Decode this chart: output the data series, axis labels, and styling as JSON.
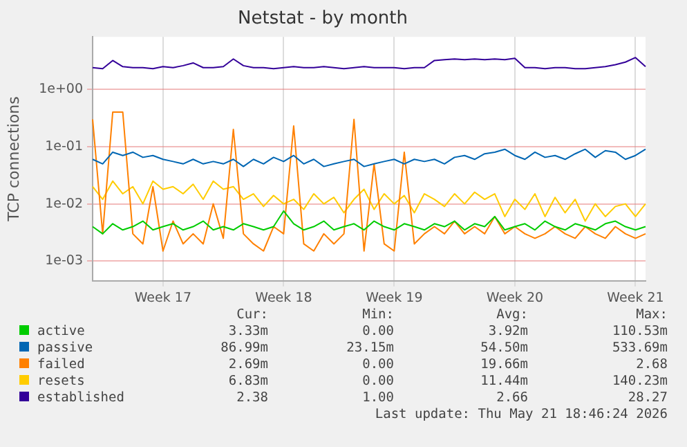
{
  "chart_data": {
    "type": "line",
    "title": "Netstat - by month",
    "ylabel": "TCP connections",
    "log": "y",
    "grid": true,
    "legend": "bottom",
    "ylim": [
      0.00045,
      8.3
    ],
    "categories": [
      null,
      null,
      null,
      null,
      null,
      null,
      null,
      "Week 17",
      null,
      null,
      null,
      null,
      null,
      null,
      null,
      null,
      null,
      null,
      null,
      "Week 18",
      null,
      null,
      null,
      null,
      null,
      null,
      null,
      null,
      null,
      null,
      "Week 19",
      null,
      null,
      null,
      null,
      null,
      null,
      null,
      null,
      null,
      null,
      null,
      "Week 20",
      null,
      null,
      null,
      null,
      null,
      null,
      null,
      null,
      null,
      null,
      null,
      "Week 21",
      null
    ],
    "yticks": [
      {
        "value": 0.001,
        "label": "1e-03"
      },
      {
        "value": 0.01,
        "label": "1e-02"
      },
      {
        "value": 0.1,
        "label": "1e-01"
      },
      {
        "value": 1,
        "label": "1e+00"
      }
    ],
    "series": [
      {
        "name": "active",
        "color": "#00cc00",
        "values": [
          0.004,
          0.003,
          0.0045,
          0.0035,
          0.004,
          0.005,
          0.0035,
          0.004,
          0.0045,
          0.0035,
          0.004,
          0.005,
          0.0035,
          0.004,
          0.0035,
          0.0045,
          0.004,
          0.0035,
          0.004,
          0.0075,
          0.0045,
          0.0035,
          0.004,
          0.005,
          0.0035,
          0.004,
          0.0045,
          0.0035,
          0.005,
          0.004,
          0.0035,
          0.0045,
          0.004,
          0.0035,
          0.0045,
          0.004,
          0.005,
          0.0035,
          0.0045,
          0.004,
          0.006,
          0.0035,
          0.004,
          0.0045,
          0.0035,
          0.005,
          0.004,
          0.0035,
          0.0045,
          0.004,
          0.0035,
          0.0045,
          0.005,
          0.004,
          0.0035,
          0.004
        ]
      },
      {
        "name": "passive",
        "color": "#0066b3",
        "values": [
          0.06,
          0.05,
          0.08,
          0.07,
          0.08,
          0.065,
          0.07,
          0.06,
          0.055,
          0.05,
          0.06,
          0.05,
          0.055,
          0.05,
          0.06,
          0.045,
          0.06,
          0.05,
          0.065,
          0.055,
          0.07,
          0.05,
          0.06,
          0.045,
          0.05,
          0.055,
          0.06,
          0.045,
          0.05,
          0.055,
          0.06,
          0.05,
          0.06,
          0.055,
          0.06,
          0.05,
          0.065,
          0.07,
          0.06,
          0.075,
          0.08,
          0.09,
          0.07,
          0.06,
          0.08,
          0.065,
          0.07,
          0.06,
          0.075,
          0.09,
          0.065,
          0.085,
          0.08,
          0.06,
          0.07,
          0.09
        ]
      },
      {
        "name": "failed",
        "color": "#ff8000",
        "values": [
          0.3,
          0.003,
          0.4,
          0.4,
          0.003,
          0.002,
          0.02,
          0.0015,
          0.005,
          0.002,
          0.003,
          0.002,
          0.01,
          0.0025,
          0.2,
          0.003,
          0.002,
          0.0015,
          0.004,
          0.003,
          0.23,
          0.002,
          0.0015,
          0.003,
          0.002,
          0.003,
          0.3,
          0.0015,
          0.05,
          0.002,
          0.0015,
          0.08,
          0.002,
          0.003,
          0.004,
          0.003,
          0.005,
          0.003,
          0.004,
          0.003,
          0.006,
          0.003,
          0.004,
          0.003,
          0.0025,
          0.003,
          0.004,
          0.003,
          0.0025,
          0.004,
          0.003,
          0.0025,
          0.004,
          0.003,
          0.0025,
          0.003
        ]
      },
      {
        "name": "resets",
        "color": "#ffcc00",
        "values": [
          0.02,
          0.012,
          0.025,
          0.015,
          0.02,
          0.01,
          0.025,
          0.018,
          0.02,
          0.015,
          0.022,
          0.012,
          0.025,
          0.018,
          0.02,
          0.012,
          0.015,
          0.009,
          0.014,
          0.01,
          0.012,
          0.008,
          0.015,
          0.01,
          0.013,
          0.007,
          0.012,
          0.018,
          0.008,
          0.015,
          0.01,
          0.014,
          0.007,
          0.015,
          0.012,
          0.009,
          0.015,
          0.01,
          0.016,
          0.012,
          0.015,
          0.006,
          0.012,
          0.008,
          0.015,
          0.006,
          0.013,
          0.007,
          0.012,
          0.005,
          0.01,
          0.006,
          0.009,
          0.01,
          0.006,
          0.01
        ]
      },
      {
        "name": "established",
        "color": "#330099",
        "values": [
          2.4,
          2.3,
          3.2,
          2.5,
          2.4,
          2.4,
          2.3,
          2.5,
          2.4,
          2.6,
          2.9,
          2.4,
          2.4,
          2.5,
          3.4,
          2.6,
          2.4,
          2.4,
          2.3,
          2.4,
          2.5,
          2.4,
          2.4,
          2.5,
          2.4,
          2.3,
          2.4,
          2.5,
          2.4,
          2.4,
          2.4,
          2.3,
          2.4,
          2.4,
          3.2,
          3.3,
          3.4,
          3.3,
          3.4,
          3.3,
          3.4,
          3.3,
          3.5,
          2.4,
          2.4,
          2.3,
          2.4,
          2.4,
          2.3,
          2.3,
          2.4,
          2.5,
          2.7,
          3.0,
          3.6,
          2.5
        ]
      }
    ],
    "annotations": [
      "Cur:",
      "Min:",
      "Avg:",
      "Max:",
      "3.33m",
      "0.00",
      "3.92m",
      "110.53m",
      "86.99m",
      "23.15m",
      "54.50m",
      "533.69m",
      "2.69m",
      "0.00",
      "19.66m",
      "2.68",
      "6.83m",
      "0.00",
      "11.44m",
      "140.23m",
      "2.38",
      "1.00",
      "2.66",
      "28.27",
      "Last update: Thu May 21 18:46:24 2026"
    ]
  }
}
